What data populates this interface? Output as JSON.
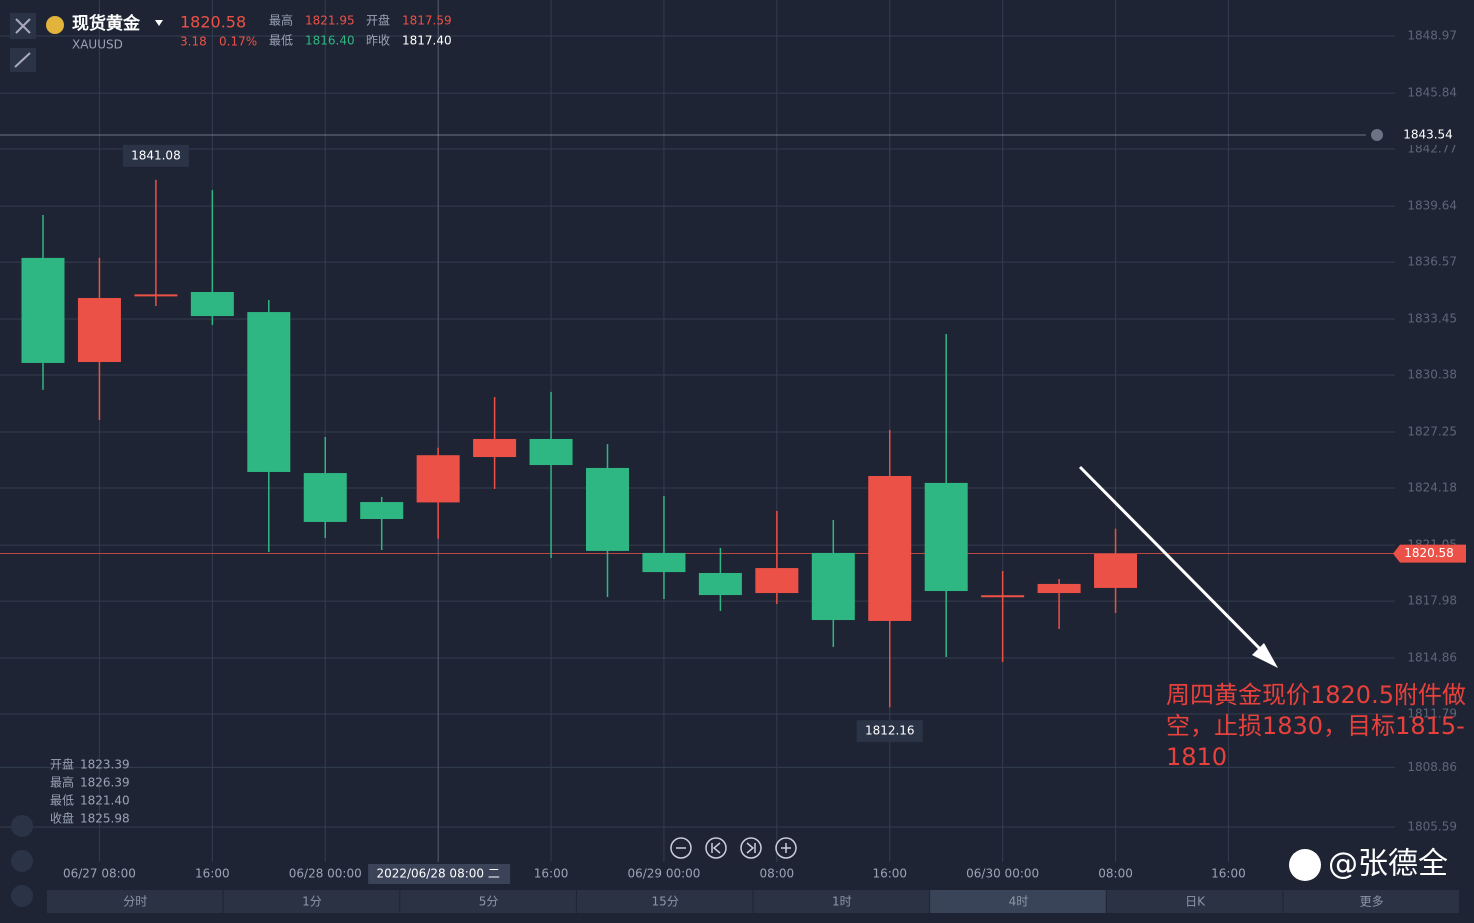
{
  "chart_data": {
    "type": "candlestick",
    "title": "现货黄金",
    "symbol": "XAUUSD",
    "quote": {
      "price": "1820.58",
      "change": "3.18",
      "change_pct": "0.17%",
      "high_label": "最高",
      "high": "1821.95",
      "open_label": "开盘",
      "open": "1817.59",
      "low_label": "最低",
      "low": "1816.40",
      "prev_label": "昨收",
      "prev": "1817.40"
    },
    "categories": [
      null,
      "06/27 08:00",
      null,
      "16:00",
      null,
      "06/28 00:00",
      null,
      "2022/06/28 08:00 二",
      null,
      "16:00",
      null,
      "06/29 00:00",
      null,
      "08:00",
      null,
      "16:00",
      null,
      "06/30 00:00",
      null,
      "08:00",
      null,
      "16:00"
    ],
    "open": [
      1836.8,
      1831.09,
      1834.7,
      1834.93,
      1833.83,
      1825.0,
      1823.41,
      1823.39,
      1825.88,
      1826.87,
      1825.28,
      1820.62,
      1819.52,
      1818.42,
      1820.62,
      1816.89,
      1824.46,
      1818.2,
      1818.42,
      1818.7,
      null,
      null
    ],
    "high": [
      1839.15,
      1836.8,
      1841.08,
      1840.52,
      1834.49,
      1826.98,
      1823.69,
      1826.39,
      1829.17,
      1829.45,
      1826.59,
      1823.74,
      1820.89,
      1822.92,
      1822.43,
      1827.36,
      1832.63,
      1819.63,
      1819.19,
      1821.95,
      null,
      null
    ],
    "low": [
      1829.56,
      1827.91,
      1834.16,
      1833.12,
      1820.67,
      1821.44,
      1820.78,
      1821.4,
      1824.13,
      1820.34,
      1818.2,
      1818.09,
      1817.44,
      1817.82,
      1815.46,
      1812.16,
      1814.91,
      1814.64,
      1816.45,
      1817.33,
      null,
      null
    ],
    "close": [
      1831.04,
      1834.6,
      1834.8,
      1833.61,
      1825.06,
      1822.32,
      1822.48,
      1825.98,
      1826.87,
      1825.44,
      1820.73,
      1819.57,
      1818.31,
      1819.79,
      1816.94,
      1824.84,
      1818.53,
      1818.3,
      1818.92,
      1820.58,
      null,
      null
    ],
    "up_color": "#ec5147",
    "down_color": "#2fb783",
    "ylim": [
      1803.67,
      1850.67
    ],
    "yticks": [
      1805.59,
      1808.86,
      1811.79,
      1814.86,
      1817.98,
      1821.05,
      1824.18,
      1827.25,
      1830.38,
      1833.45,
      1836.57,
      1839.64,
      1842.77,
      1845.84,
      1848.97
    ],
    "grid": true,
    "current_price": 1820.58,
    "alert_price": 1843.54,
    "high_annotation": 1841.08,
    "low_annotation": 1812.16,
    "info_box": [
      [
        "开盘",
        "1823.39"
      ],
      [
        "最高",
        "1826.39"
      ],
      [
        "最低",
        "1821.40"
      ],
      [
        "收盘",
        "1825.98"
      ]
    ],
    "periods": [
      "分时",
      "1分",
      "5分",
      "15分",
      "1时",
      "4时",
      "日K",
      "更多"
    ],
    "annotation": "周四黄金现价1820.5附件做空，止损1830，目标1815-1810",
    "watermark": "@张德全"
  }
}
